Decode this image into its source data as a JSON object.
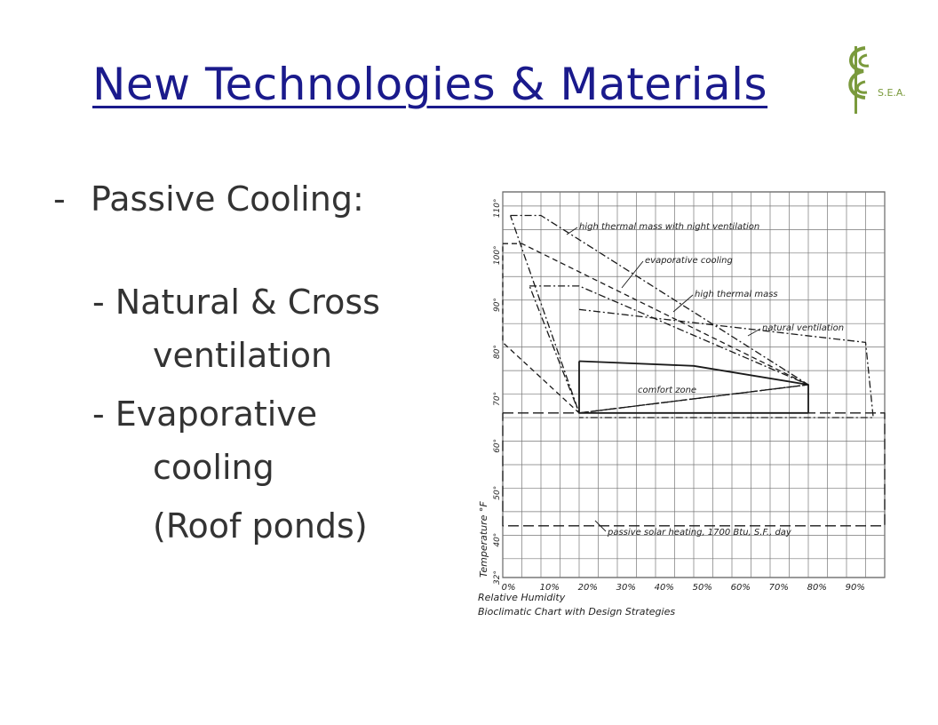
{
  "slide": {
    "title": "New Technologies & Materials",
    "bullet_dash": "-",
    "bullet": "Passive Cooling:",
    "sub_items": [
      {
        "line1": "- Natural & Cross",
        "line2": "ventilation"
      },
      {
        "line1": "- Evaporative",
        "line2": "cooling"
      },
      {
        "line1": "(Roof ponds)"
      }
    ]
  },
  "logo": {
    "text": "S.E.A.",
    "icon": "cse-leaf-logo",
    "color": "#7a9a3c"
  },
  "colors": {
    "title": "#1a1a8c",
    "body": "#333333"
  },
  "chart_data": {
    "type": "area",
    "title": "Bioclimatic Chart with Design Strategies",
    "xlabel": "Relative Humidity",
    "ylabel": "Temperature °F",
    "x_ticks": [
      "0%",
      "10%",
      "20%",
      "30%",
      "40%",
      "50%",
      "60%",
      "70%",
      "80%",
      "90%"
    ],
    "y_ticks": [
      "32°",
      "40°",
      "50°",
      "60°",
      "70°",
      "80°",
      "90°",
      "100°",
      "110°"
    ],
    "xlim": [
      0,
      100
    ],
    "ylim": [
      32,
      114
    ],
    "grid": true,
    "regions": [
      {
        "name": "high thermal mass with night ventilation",
        "style": "dash-dot",
        "points": [
          [
            2,
            109
          ],
          [
            10,
            109
          ],
          [
            80,
            73
          ],
          [
            20,
            67
          ],
          [
            2,
            109
          ]
        ]
      },
      {
        "name": "evaporative cooling",
        "style": "dashed",
        "points": [
          [
            0,
            103
          ],
          [
            5,
            103
          ],
          [
            80,
            73
          ],
          [
            20,
            67
          ],
          [
            0,
            82
          ],
          [
            0,
            103
          ]
        ]
      },
      {
        "name": "high thermal mass",
        "style": "dash-dot",
        "points": [
          [
            7,
            94
          ],
          [
            20,
            94
          ],
          [
            80,
            73
          ],
          [
            20,
            67
          ],
          [
            7,
            94
          ]
        ]
      },
      {
        "name": "natural ventilation",
        "style": "dash-dot",
        "points": [
          [
            20,
            89
          ],
          [
            95,
            82
          ],
          [
            97,
            66
          ],
          [
            20,
            66
          ]
        ]
      },
      {
        "name": "comfort zone",
        "style": "solid",
        "points": [
          [
            20,
            78
          ],
          [
            50,
            77
          ],
          [
            80,
            73
          ],
          [
            80,
            67
          ],
          [
            20,
            67
          ],
          [
            20,
            78
          ]
        ]
      },
      {
        "name": "passive solar heating, 1700 Btu, S.F., day",
        "style": "long-dash",
        "points": [
          [
            0,
            67
          ],
          [
            100,
            67
          ],
          [
            100,
            43
          ],
          [
            0,
            43
          ],
          [
            0,
            67
          ]
        ]
      }
    ],
    "annotations": [
      "high thermal mass with night ventilation",
      "evaporative cooling",
      "high thermal mass",
      "natural ventilation",
      "comfort zone",
      "passive solar heating, 1700 Btu, S.F., day"
    ]
  }
}
